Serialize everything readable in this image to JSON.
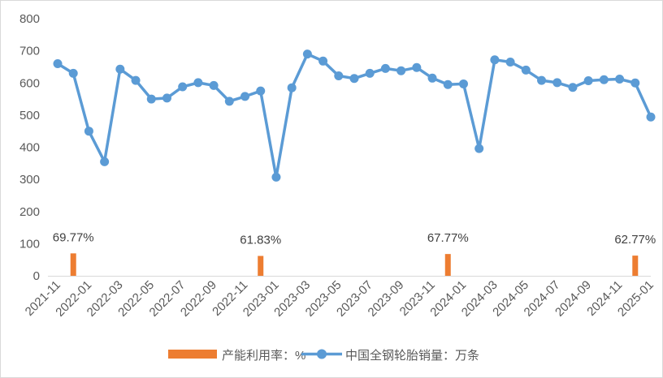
{
  "chart_data": {
    "type": "bar+line",
    "title": "",
    "xlabel": "",
    "ylabel": "",
    "ylim": [
      0,
      800
    ],
    "yticks": [
      0,
      100,
      200,
      300,
      400,
      500,
      600,
      700,
      800
    ],
    "grid": false,
    "legend_position": "bottom",
    "x": [
      "2021-11",
      "2021-12",
      "2022-01",
      "2022-02",
      "2022-03",
      "2022-04",
      "2022-05",
      "2022-06",
      "2022-07",
      "2022-08",
      "2022-09",
      "2022-10",
      "2022-11",
      "2022-12",
      "2023-01",
      "2023-02",
      "2023-03",
      "2023-04",
      "2023-05",
      "2023-06",
      "2023-07",
      "2023-08",
      "2023-09",
      "2023-10",
      "2023-11",
      "2023-12",
      "2024-01",
      "2024-02",
      "2024-03",
      "2024-04",
      "2024-05",
      "2024-06",
      "2024-07",
      "2024-08",
      "2024-09",
      "2024-10",
      "2024-11",
      "2024-12",
      "2025-01"
    ],
    "x_tick_labels": [
      "2021-11",
      "2022-01",
      "2022-03",
      "2022-05",
      "2022-07",
      "2022-09",
      "2022-11",
      "2023-01",
      "2023-03",
      "2023-05",
      "2023-07",
      "2023-09",
      "2023-11",
      "2024-01",
      "2024-03",
      "2024-05",
      "2024-07",
      "2024-09",
      "2024-11",
      "2025-01"
    ],
    "series": [
      {
        "name": "产能利用率：%",
        "kind": "bar",
        "color": "#ED7D31",
        "points": [
          {
            "x": "2021-12",
            "value": 69.77,
            "label": "69.77%"
          },
          {
            "x": "2022-12",
            "value": 61.83,
            "label": "61.83%"
          },
          {
            "x": "2023-12",
            "value": 67.77,
            "label": "67.77%"
          },
          {
            "x": "2024-12",
            "value": 62.77,
            "label": "62.77%"
          }
        ]
      },
      {
        "name": "中国全钢轮胎销量：万条",
        "kind": "line",
        "color": "#5B9BD5",
        "values": [
          660,
          630,
          450,
          355,
          643,
          608,
          550,
          553,
          588,
          601,
          592,
          543,
          558,
          575,
          307,
          585,
          690,
          668,
          622,
          614,
          630,
          645,
          638,
          648,
          615,
          595,
          597,
          396,
          672,
          665,
          640,
          608,
          601,
          586,
          607,
          610,
          612,
          600,
          494
        ]
      }
    ]
  }
}
